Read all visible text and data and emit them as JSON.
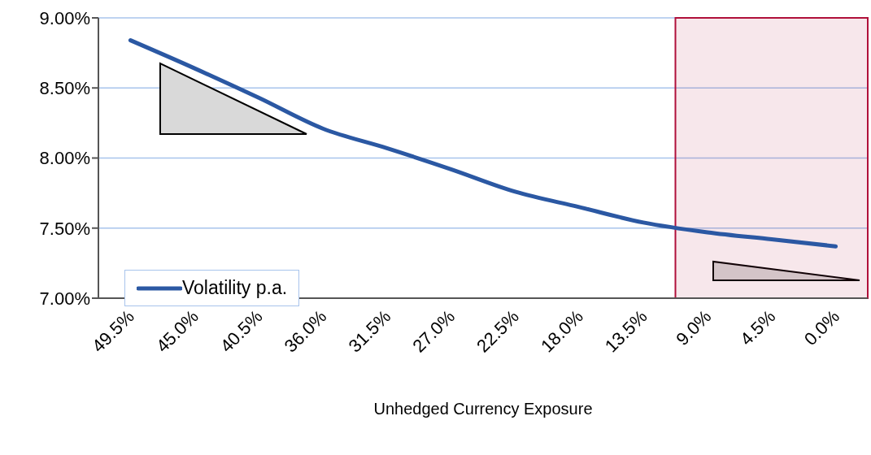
{
  "chart_data": {
    "type": "line",
    "xlabel": "Unhedged Currency Exposure",
    "categories": [
      "49.5%",
      "45.0%",
      "40.5%",
      "36.0%",
      "31.5%",
      "27.0%",
      "22.5%",
      "18.0%",
      "13.5%",
      "9.0%",
      "4.5%",
      "0.0%"
    ],
    "series": [
      {
        "name": "Volatility p.a.",
        "color": "#2b58a3",
        "values": [
          8.84,
          8.64,
          8.43,
          8.21,
          8.07,
          7.92,
          7.76,
          7.65,
          7.54,
          7.47,
          7.42,
          7.37
        ]
      }
    ],
    "ylim": [
      7,
      9
    ],
    "yticks": [
      {
        "value": 7,
        "label": "7.00%"
      },
      {
        "value": 7.5,
        "label": "7.50%"
      },
      {
        "value": 8,
        "label": "8.00%"
      },
      {
        "value": 8.5,
        "label": "8.50%"
      },
      {
        "value": 9,
        "label": "9.00%"
      }
    ],
    "bands": [
      {
        "axis": "x",
        "from": "9.0%",
        "to": "0.0%",
        "color": "#b0103a"
      }
    ],
    "grid": "y",
    "legend": "bottom left",
    "marker": "none",
    "line_style": "solid"
  }
}
